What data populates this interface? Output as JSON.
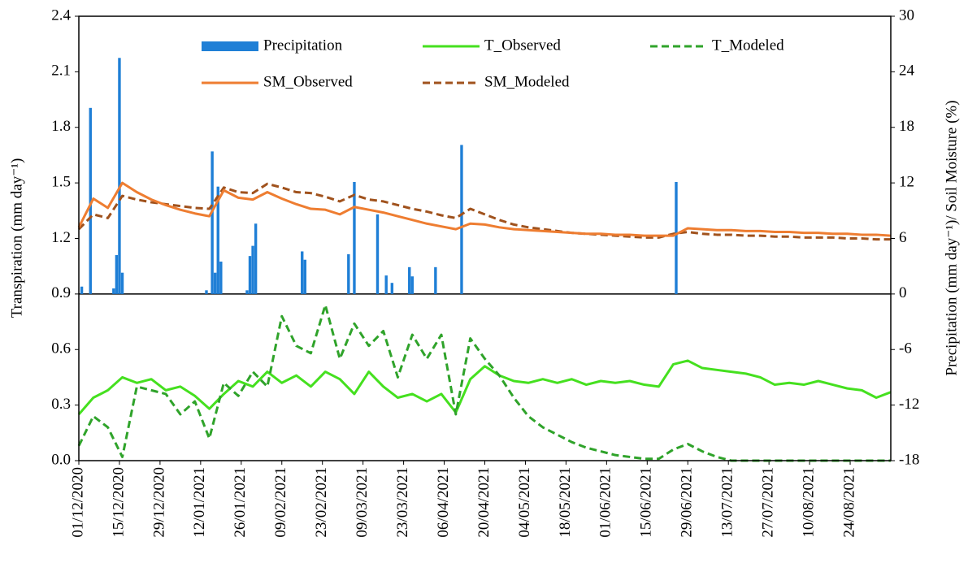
{
  "chart_data": {
    "type": "line",
    "y_label": "Transpiration (mm day⁻¹)",
    "y2_label": "Precipitation (mm day⁻¹)/ Soil Moisture (%)",
    "ylim": [
      0,
      2.4
    ],
    "yticks": [
      {
        "value": 0,
        "label": "0.0"
      },
      0.3,
      0.6,
      0.9,
      1.2,
      1.5,
      1.8,
      2.1,
      2.4
    ],
    "y2lim": [
      -18,
      30
    ],
    "y2ticks": [
      -18,
      -12,
      -6,
      0,
      6,
      12,
      18,
      24,
      30
    ],
    "xlim": [
      "01/12/2020",
      "07/09/2021"
    ],
    "xticks": [
      "01/12/2020",
      "15/12/2020",
      "29/12/2020",
      "12/01/2021",
      "26/01/2021",
      "09/02/2021",
      "23/02/2021",
      "09/03/2021",
      "23/03/2021",
      "06/04/2021",
      "20/04/2021",
      "04/05/2021",
      "18/05/2021",
      "01/06/2021",
      "15/06/2021",
      "29/06/2021",
      "13/07/2021",
      "27/07/2021",
      "10/08/2021",
      "24/08/2021"
    ],
    "x": [
      "01/12/2020",
      "06/12/2020",
      "11/12/2020",
      "16/12/2020",
      "21/12/2020",
      "26/12/2020",
      "31/12/2020",
      "05/01/2021",
      "10/01/2021",
      "15/01/2021",
      "20/01/2021",
      "25/01/2021",
      "30/01/2021",
      "04/02/2021",
      "09/02/2021",
      "14/02/2021",
      "19/02/2021",
      "24/02/2021",
      "01/03/2021",
      "06/03/2021",
      "11/03/2021",
      "16/03/2021",
      "21/03/2021",
      "26/03/2021",
      "31/03/2021",
      "05/04/2021",
      "10/04/2021",
      "15/04/2021",
      "20/04/2021",
      "25/04/2021",
      "30/04/2021",
      "05/05/2021",
      "10/05/2021",
      "15/05/2021",
      "20/05/2021",
      "25/05/2021",
      "30/05/2021",
      "04/06/2021",
      "09/06/2021",
      "14/06/2021",
      "19/06/2021",
      "24/06/2021",
      "29/06/2021",
      "04/07/2021",
      "09/07/2021",
      "14/07/2021",
      "19/07/2021",
      "24/07/2021",
      "29/07/2021",
      "03/08/2021",
      "08/08/2021",
      "13/08/2021",
      "18/08/2021",
      "23/08/2021",
      "28/08/2021",
      "02/09/2021",
      "07/09/2021"
    ],
    "series": [
      {
        "name": "Precipitation",
        "type": "bar",
        "axis": "y2",
        "color": "#1f7fd6",
        "x": [
          "02/12/2020",
          "05/12/2020",
          "13/12/2020",
          "14/12/2020",
          "15/12/2020",
          "16/12/2020",
          "14/01/2021",
          "16/01/2021",
          "17/01/2021",
          "18/01/2021",
          "19/01/2021",
          "28/01/2021",
          "29/01/2021",
          "30/01/2021",
          "31/01/2021",
          "16/02/2021",
          "17/02/2021",
          "04/03/2021",
          "06/03/2021",
          "14/03/2021",
          "17/03/2021",
          "19/03/2021",
          "25/03/2021",
          "26/03/2021",
          "03/04/2021",
          "12/04/2021",
          "25/06/2021"
        ],
        "values": [
          0.8,
          20.1,
          0.6,
          4.2,
          25.5,
          2.3,
          0.4,
          15.4,
          2.3,
          11.6,
          3.5,
          0.4,
          4.1,
          5.2,
          7.6,
          4.6,
          3.7,
          4.3,
          12.1,
          8.6,
          2.0,
          1.2,
          2.9,
          1.9,
          2.9,
          16.1,
          12.1
        ]
      },
      {
        "name": "T_Observed",
        "type": "line",
        "color": "#45e01f",
        "dash": false,
        "values": [
          0.25,
          0.34,
          0.38,
          0.45,
          0.42,
          0.44,
          0.38,
          0.4,
          0.35,
          0.28,
          0.36,
          0.43,
          0.4,
          0.48,
          0.42,
          0.46,
          0.4,
          0.48,
          0.44,
          0.36,
          0.48,
          0.4,
          0.34,
          0.36,
          0.32,
          0.36,
          0.26,
          0.44,
          0.51,
          0.46,
          0.43,
          0.42,
          0.44,
          0.42,
          0.44,
          0.41,
          0.43,
          0.42,
          0.43,
          0.41,
          0.4,
          0.52,
          0.54,
          0.5,
          0.49,
          0.48,
          0.47,
          0.45,
          0.41,
          0.42,
          0.41,
          0.43,
          0.41,
          0.39,
          0.38,
          0.34,
          0.37
        ]
      },
      {
        "name": "T_Modeled",
        "type": "line",
        "color": "#2fa32a",
        "dash": true,
        "values": [
          0.08,
          0.24,
          0.18,
          0.02,
          0.4,
          0.38,
          0.36,
          0.25,
          0.32,
          0.12,
          0.42,
          0.35,
          0.48,
          0.4,
          0.78,
          0.62,
          0.58,
          0.84,
          0.55,
          0.74,
          0.62,
          0.7,
          0.45,
          0.68,
          0.55,
          0.68,
          0.25,
          0.66,
          0.55,
          0.46,
          0.34,
          0.24,
          0.18,
          0.14,
          0.1,
          0.07,
          0.05,
          0.03,
          0.02,
          0.01,
          0.01,
          0.06,
          0.09,
          0.05,
          0.02,
          0,
          0,
          0,
          0,
          0,
          0,
          0,
          0,
          0,
          0,
          0,
          0
        ]
      },
      {
        "name": "SM_Observed",
        "type": "line",
        "axis": "y2",
        "color": "#ee7d31",
        "dash": false,
        "values": [
          7.2,
          10.3,
          9.3,
          12.0,
          11.0,
          10.2,
          9.6,
          9.1,
          8.7,
          8.4,
          11.2,
          10.4,
          10.2,
          11.0,
          10.3,
          9.7,
          9.2,
          9.1,
          8.6,
          9.4,
          9.1,
          8.8,
          8.4,
          8.0,
          7.6,
          7.3,
          7.0,
          7.6,
          7.5,
          7.2,
          7.0,
          6.9,
          6.8,
          6.7,
          6.6,
          6.5,
          6.5,
          6.4,
          6.4,
          6.3,
          6.3,
          6.3,
          7.1,
          7.0,
          6.9,
          6.9,
          6.8,
          6.8,
          6.7,
          6.7,
          6.6,
          6.6,
          6.5,
          6.5,
          6.4,
          6.4,
          6.3
        ]
      },
      {
        "name": "SM_Modeled",
        "type": "line",
        "axis": "y2",
        "color": "#a0521d",
        "dash": true,
        "values": [
          7.0,
          8.6,
          8.2,
          10.6,
          10.2,
          9.9,
          9.7,
          9.5,
          9.3,
          9.2,
          11.5,
          11.0,
          10.9,
          11.9,
          11.5,
          11.0,
          10.9,
          10.5,
          10.0,
          10.7,
          10.2,
          10.0,
          9.6,
          9.2,
          8.9,
          8.5,
          8.2,
          9.2,
          8.6,
          8.0,
          7.5,
          7.2,
          7.0,
          6.8,
          6.6,
          6.5,
          6.4,
          6.3,
          6.2,
          6.1,
          6.1,
          6.5,
          6.7,
          6.5,
          6.4,
          6.4,
          6.3,
          6.3,
          6.2,
          6.2,
          6.1,
          6.1,
          6.1,
          6.0,
          6.0,
          5.9,
          5.9
        ]
      }
    ]
  }
}
